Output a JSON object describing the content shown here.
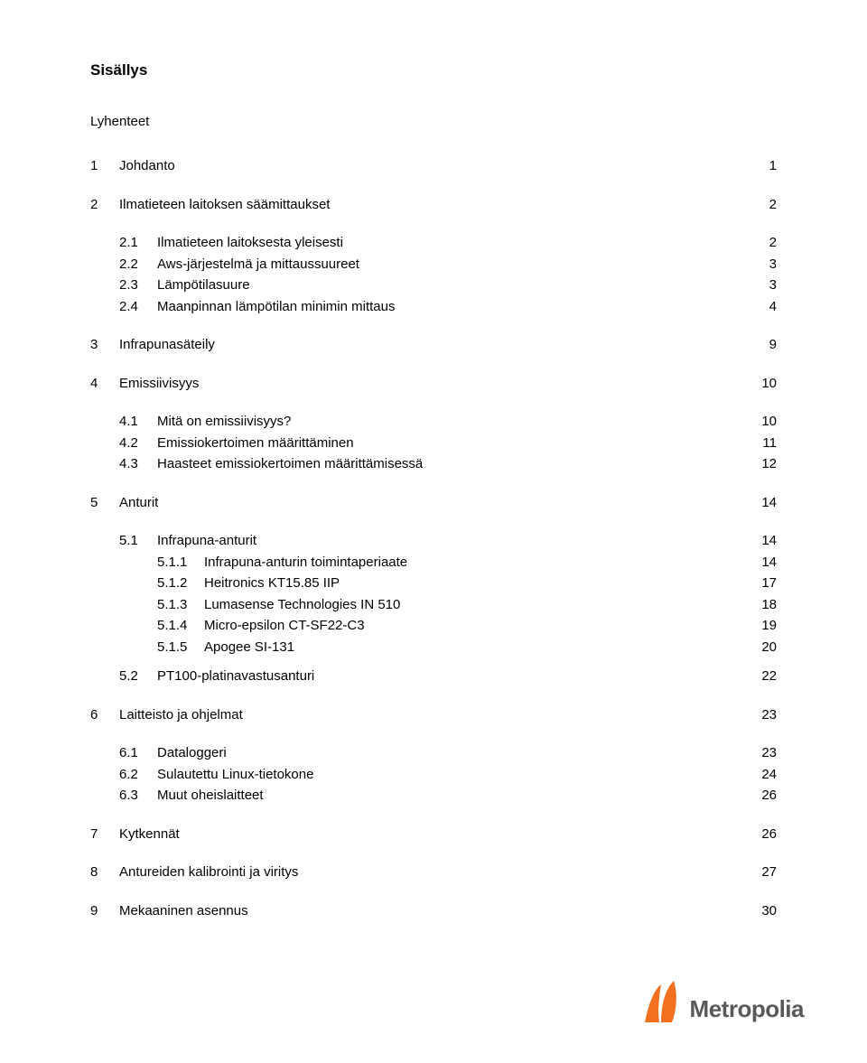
{
  "title": "Sisällys",
  "lyhenteet": "Lyhenteet",
  "logo_text": "Metropolia",
  "logo_colors": {
    "orange": "#f37021",
    "gray": "#58595b"
  },
  "entries": [
    {
      "level": 1,
      "num": "1",
      "label": "Johdanto",
      "page": "1"
    },
    {
      "level": 1,
      "num": "2",
      "label": "Ilmatieteen laitoksen säämittaukset",
      "page": "2"
    },
    {
      "level": 2,
      "num": "2.1",
      "label": "Ilmatieteen laitoksesta yleisesti",
      "page": "2"
    },
    {
      "level": 2,
      "num": "2.2",
      "label": "Aws-järjestelmä ja mittaussuureet",
      "page": "3"
    },
    {
      "level": 2,
      "num": "2.3",
      "label": "Lämpötilasuure",
      "page": "3"
    },
    {
      "level": 2,
      "num": "2.4",
      "label": "Maanpinnan lämpötilan minimin mittaus",
      "page": "4",
      "lastInGroup": true
    },
    {
      "level": 1,
      "num": "3",
      "label": "Infrapunasäteily",
      "page": "9"
    },
    {
      "level": 1,
      "num": "4",
      "label": "Emissiivisyys",
      "page": "10"
    },
    {
      "level": 2,
      "num": "4.1",
      "label": "Mitä on emissiivisyys?",
      "page": "10"
    },
    {
      "level": 2,
      "num": "4.2",
      "label": "Emissiokertoimen määrittäminen",
      "page": "11"
    },
    {
      "level": 2,
      "num": "4.3",
      "label": "Haasteet emissiokertoimen määrittämisessä",
      "page": "12",
      "lastInGroup": true
    },
    {
      "level": 1,
      "num": "5",
      "label": "Anturit",
      "page": "14"
    },
    {
      "level": 2,
      "num": "5.1",
      "label": "Infrapuna-anturit",
      "page": "14"
    },
    {
      "level": 3,
      "num": "5.1.1",
      "label": "Infrapuna-anturin toimintaperiaate",
      "page": "14"
    },
    {
      "level": 3,
      "num": "5.1.2",
      "label": "Heitronics KT15.85 IIP",
      "page": "17"
    },
    {
      "level": 3,
      "num": "5.1.3",
      "label": "Lumasense Technologies IN 510",
      "page": "18"
    },
    {
      "level": 3,
      "num": "5.1.4",
      "label": "Micro-epsilon CT-SF22-C3",
      "page": "19"
    },
    {
      "level": 3,
      "num": "5.1.5",
      "label": "Apogee SI-131",
      "page": "20"
    },
    {
      "level": 2,
      "num": "5.2",
      "label": "PT100-platinavastusanturi",
      "page": "22",
      "lastInGroup": true,
      "gapAbove": true
    },
    {
      "level": 1,
      "num": "6",
      "label": "Laitteisto ja ohjelmat",
      "page": "23"
    },
    {
      "level": 2,
      "num": "6.1",
      "label": "Dataloggeri",
      "page": "23"
    },
    {
      "level": 2,
      "num": "6.2",
      "label": "Sulautettu Linux-tietokone",
      "page": "24"
    },
    {
      "level": 2,
      "num": "6.3",
      "label": "Muut oheislaitteet",
      "page": "26",
      "lastInGroup": true
    },
    {
      "level": 1,
      "num": "7",
      "label": "Kytkennät",
      "page": "26"
    },
    {
      "level": 1,
      "num": "8",
      "label": "Antureiden kalibrointi ja viritys",
      "page": "27"
    },
    {
      "level": 1,
      "num": "9",
      "label": "Mekaaninen asennus",
      "page": "30"
    }
  ]
}
